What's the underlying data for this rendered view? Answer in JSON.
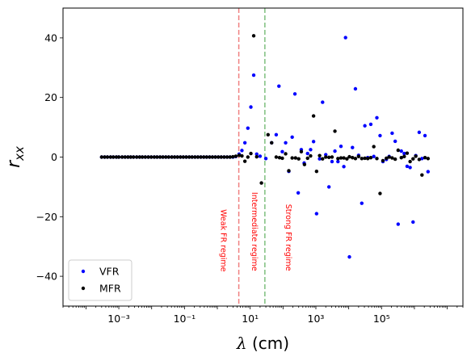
{
  "chart_data": {
    "type": "scatter",
    "title": "",
    "xlabel": "λ (cm)",
    "ylabel": "r_xx",
    "xscale": "log",
    "xlim": [
      2e-05,
      30000000
    ],
    "ylim": [
      -50,
      50
    ],
    "xticks": [
      {
        "value": 0.001,
        "label": "10⁻³"
      },
      {
        "value": 0.1,
        "label": "10⁻¹"
      },
      {
        "value": 10,
        "label": "10¹"
      },
      {
        "value": 1000,
        "label": "10³"
      },
      {
        "value": 100000,
        "label": "10⁵"
      }
    ],
    "yticks": [
      -40,
      -20,
      0,
      20,
      40
    ],
    "grid": false,
    "legend": {
      "position": "lower-left"
    },
    "vlines": [
      {
        "x": 4.5,
        "color": "#f08080",
        "style": "dashed"
      },
      {
        "x": 28,
        "color": "#7fc07f",
        "style": "dashed"
      }
    ],
    "annotations": [
      {
        "text": "Weak FR regime",
        "x": 1.5,
        "y": -28,
        "rotation": -90,
        "color": "#ff0000"
      },
      {
        "text": "Intermediate regime",
        "x": 13,
        "y": -25,
        "rotation": -90,
        "color": "#ff0000"
      },
      {
        "text": "Strong FR regime",
        "x": 140,
        "y": -27,
        "rotation": -90,
        "color": "#ff0000"
      }
    ],
    "series": [
      {
        "name": "VFR",
        "color": "#0000ff",
        "points": [
          [
            0.0003,
            0
          ],
          [
            0.00037,
            0
          ],
          [
            0.00045,
            0
          ],
          [
            0.00056,
            0
          ],
          [
            0.00068,
            0
          ],
          [
            0.00084,
            0
          ],
          [
            0.001,
            0
          ],
          [
            0.00126,
            0
          ],
          [
            0.00155,
            0
          ],
          [
            0.0019,
            0
          ],
          [
            0.0023,
            0
          ],
          [
            0.0028,
            0
          ],
          [
            0.0035,
            0
          ],
          [
            0.0043,
            0
          ],
          [
            0.0052,
            0
          ],
          [
            0.0064,
            0
          ],
          [
            0.0079,
            0
          ],
          [
            0.0097,
            0
          ],
          [
            0.012,
            0
          ],
          [
            0.0146,
            0
          ],
          [
            0.018,
            0
          ],
          [
            0.022,
            0
          ],
          [
            0.027,
            0
          ],
          [
            0.033,
            0
          ],
          [
            0.041,
            0
          ],
          [
            0.05,
            0
          ],
          [
            0.061,
            0
          ],
          [
            0.075,
            0
          ],
          [
            0.092,
            0
          ],
          [
            0.113,
            0
          ],
          [
            0.139,
            0
          ],
          [
            0.17,
            0
          ],
          [
            0.209,
            0
          ],
          [
            0.256,
            0
          ],
          [
            0.314,
            0
          ],
          [
            0.386,
            0
          ],
          [
            0.473,
            0
          ],
          [
            0.58,
            0
          ],
          [
            0.71,
            0
          ],
          [
            0.87,
            0
          ],
          [
            1.07,
            0
          ],
          [
            1.31,
            0
          ],
          [
            1.61,
            0
          ],
          [
            1.98,
            0
          ],
          [
            2.43,
            0
          ],
          [
            2.98,
            0
          ],
          [
            3.65,
            0.2
          ],
          [
            4.6,
            1.0
          ],
          [
            5.6,
            2.2
          ],
          [
            6.9,
            4.8
          ],
          [
            8.5,
            9.7
          ],
          [
            10.5,
            16.8
          ],
          [
            12.8,
            27.5
          ],
          [
            15.8,
            1.0
          ],
          [
            20,
            0.3
          ],
          [
            30,
            -0.5
          ],
          [
            45,
            4.8
          ],
          [
            62,
            7.5
          ],
          [
            75,
            23.8
          ],
          [
            95,
            1.8
          ],
          [
            120,
            4.8
          ],
          [
            150,
            -4.8
          ],
          [
            190,
            6.7
          ],
          [
            230,
            21.2
          ],
          [
            290,
            -12.0
          ],
          [
            360,
            2.5
          ],
          [
            440,
            -2.0
          ],
          [
            560,
            1.2
          ],
          [
            690,
            2.5
          ],
          [
            850,
            5.2
          ],
          [
            1050,
            -19.0
          ],
          [
            1300,
            -0.6
          ],
          [
            1600,
            18.4
          ],
          [
            2000,
            0.8
          ],
          [
            2500,
            -10.0
          ],
          [
            3100,
            -1.5
          ],
          [
            3800,
            2.0
          ],
          [
            4700,
            -1.5
          ],
          [
            5800,
            3.6
          ],
          [
            7100,
            -3.2
          ],
          [
            8000,
            40.1
          ],
          [
            10500,
            -33.5
          ],
          [
            13000,
            3.2
          ],
          [
            16000,
            22.9
          ],
          [
            20000,
            0.6
          ],
          [
            25000,
            -15.5
          ],
          [
            31000,
            10.5
          ],
          [
            38000,
            -0.2
          ],
          [
            47000,
            11.0
          ],
          [
            58000,
            0.2
          ],
          [
            72000,
            13.2
          ],
          [
            90000,
            7.2
          ],
          [
            110000,
            -1.5
          ],
          [
            140000,
            -0.8
          ],
          [
            170000,
            0.2
          ],
          [
            210000,
            8.0
          ],
          [
            260000,
            5.3
          ],
          [
            320000,
            -22.5
          ],
          [
            400000,
            2.0
          ],
          [
            490000,
            1.2
          ],
          [
            600000,
            -3.1
          ],
          [
            740000,
            -3.5
          ],
          [
            910000,
            -21.8
          ],
          [
            1100000,
            0.5
          ],
          [
            1400000,
            8.3
          ],
          [
            1700000,
            -0.5
          ],
          [
            2100000,
            7.2
          ],
          [
            2600000,
            -4.9
          ]
        ]
      },
      {
        "name": "MFR",
        "color": "#000000",
        "points": [
          [
            0.0003,
            0
          ],
          [
            0.00037,
            0
          ],
          [
            0.00045,
            0
          ],
          [
            0.00056,
            0
          ],
          [
            0.00068,
            0
          ],
          [
            0.00084,
            0
          ],
          [
            0.001,
            0
          ],
          [
            0.00126,
            0
          ],
          [
            0.00155,
            0
          ],
          [
            0.0019,
            0
          ],
          [
            0.0023,
            0
          ],
          [
            0.0028,
            0
          ],
          [
            0.0035,
            0
          ],
          [
            0.0043,
            0
          ],
          [
            0.0052,
            0
          ],
          [
            0.0064,
            0
          ],
          [
            0.0079,
            0
          ],
          [
            0.0097,
            0
          ],
          [
            0.012,
            0
          ],
          [
            0.0146,
            0
          ],
          [
            0.018,
            0
          ],
          [
            0.022,
            0
          ],
          [
            0.027,
            0
          ],
          [
            0.033,
            0
          ],
          [
            0.041,
            0
          ],
          [
            0.05,
            0
          ],
          [
            0.061,
            0
          ],
          [
            0.075,
            0
          ],
          [
            0.092,
            0
          ],
          [
            0.113,
            0
          ],
          [
            0.139,
            0
          ],
          [
            0.17,
            0
          ],
          [
            0.209,
            0
          ],
          [
            0.256,
            0
          ],
          [
            0.314,
            0
          ],
          [
            0.386,
            0
          ],
          [
            0.473,
            0
          ],
          [
            0.58,
            0
          ],
          [
            0.71,
            0
          ],
          [
            0.87,
            0
          ],
          [
            1.07,
            0
          ],
          [
            1.31,
            0
          ],
          [
            1.61,
            0
          ],
          [
            1.98,
            0
          ],
          [
            2.43,
            0
          ],
          [
            2.98,
            0.1
          ],
          [
            3.65,
            0.3
          ],
          [
            4.6,
            0.6
          ],
          [
            5.6,
            0.4
          ],
          [
            6.9,
            -1.4
          ],
          [
            8.5,
            0.0
          ],
          [
            10.5,
            1.2
          ],
          [
            12.8,
            40.7
          ],
          [
            15.8,
            0.1
          ],
          [
            22,
            -8.7
          ],
          [
            35,
            7.5
          ],
          [
            45,
            4.8
          ],
          [
            62,
            0.0
          ],
          [
            78,
            -0.2
          ],
          [
            95,
            -0.4
          ],
          [
            120,
            1.1
          ],
          [
            150,
            -4.6
          ],
          [
            190,
            -0.3
          ],
          [
            240,
            -0.3
          ],
          [
            300,
            -0.6
          ],
          [
            360,
            1.8
          ],
          [
            450,
            -2.5
          ],
          [
            560,
            -0.4
          ],
          [
            690,
            0.4
          ],
          [
            850,
            13.8
          ],
          [
            1050,
            -4.8
          ],
          [
            1300,
            0.5
          ],
          [
            1600,
            -0.6
          ],
          [
            2000,
            0.0
          ],
          [
            2500,
            -0.1
          ],
          [
            3100,
            0.0
          ],
          [
            3800,
            8.7
          ],
          [
            4700,
            -0.5
          ],
          [
            5800,
            -0.3
          ],
          [
            7100,
            -0.3
          ],
          [
            8800,
            -0.6
          ],
          [
            10500,
            0.1
          ],
          [
            13000,
            -0.2
          ],
          [
            16000,
            -0.5
          ],
          [
            20000,
            0.2
          ],
          [
            25000,
            -0.5
          ],
          [
            31000,
            -0.4
          ],
          [
            38000,
            -0.5
          ],
          [
            47000,
            -0.2
          ],
          [
            58000,
            3.5
          ],
          [
            72000,
            -0.5
          ],
          [
            90000,
            -12.2
          ],
          [
            110000,
            -1.2
          ],
          [
            140000,
            -0.4
          ],
          [
            170000,
            0.0
          ],
          [
            210000,
            -0.3
          ],
          [
            260000,
            -0.7
          ],
          [
            320000,
            2.3
          ],
          [
            400000,
            -0.2
          ],
          [
            490000,
            0.2
          ],
          [
            600000,
            1.3
          ],
          [
            740000,
            -1.5
          ],
          [
            910000,
            -0.6
          ],
          [
            1100000,
            0.3
          ],
          [
            1400000,
            -0.8
          ],
          [
            1700000,
            -6.0
          ],
          [
            2100000,
            -0.2
          ],
          [
            2600000,
            -0.5
          ]
        ]
      }
    ]
  }
}
